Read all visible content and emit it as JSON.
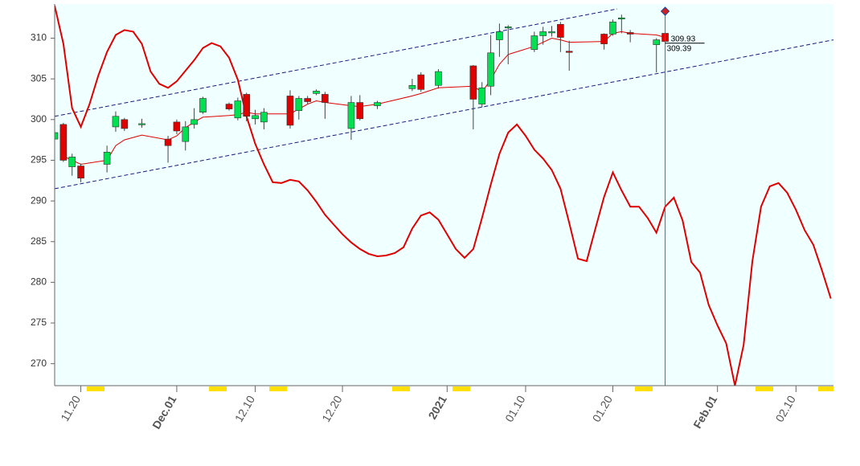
{
  "chart_data": {
    "type": "candlestick",
    "xlim": [
      17,
      106.3
    ],
    "ylim": [
      267.3,
      314.2
    ],
    "yticks": [
      270,
      275,
      280,
      285,
      290,
      295,
      300,
      305,
      310
    ],
    "xticks": [
      {
        "value": 20,
        "label": "11.20"
      },
      {
        "value": 31,
        "label": "Dec.01"
      },
      {
        "value": 40,
        "label": "12.10"
      },
      {
        "value": 50,
        "label": "12.20"
      },
      {
        "value": 62,
        "label": "2021"
      },
      {
        "value": 71,
        "label": "01.10"
      },
      {
        "value": 81,
        "label": "01.20"
      },
      {
        "value": 93,
        "label": "Feb.01"
      },
      {
        "value": 102,
        "label": "02.10"
      }
    ],
    "xtick_colors": [
      "#666666",
      "#800000",
      "#666666",
      "#666666",
      "#800000",
      "#666666",
      "#666666",
      "#800000",
      "#666666"
    ],
    "up_color": "#00e050",
    "down_color": "#e00000",
    "candles": {
      "x": [
        17,
        18,
        19,
        20,
        23,
        24,
        25,
        27,
        30,
        31,
        32,
        33,
        34,
        37,
        38,
        39,
        40,
        41,
        44,
        45,
        46,
        47,
        48,
        51,
        52,
        54,
        58,
        59,
        61,
        65,
        66,
        67,
        68,
        69,
        72,
        73,
        74,
        75,
        76,
        80,
        81,
        82,
        83,
        86,
        87
      ],
      "open": [
        297.6,
        299.4,
        294.2,
        294.3,
        294.5,
        299.1,
        300.0,
        299.4,
        297.6,
        299.7,
        297.3,
        299.4,
        300.9,
        301.9,
        300.2,
        303.1,
        300.1,
        299.7,
        302.9,
        301.1,
        302.6,
        303.2,
        303.1,
        298.9,
        302.1,
        301.7,
        303.8,
        305.5,
        304.2,
        306.6,
        301.9,
        304.1,
        309.8,
        311.3,
        308.6,
        310.3,
        310.7,
        311.7,
        308.4,
        310.5,
        310.5,
        312.4,
        310.7,
        309.2,
        310.6
      ],
      "high": [
        299.3,
        299.6,
        295.8,
        294.6,
        296.8,
        301.0,
        300.2,
        300.1,
        298.0,
        300.0,
        299.8,
        301.4,
        302.8,
        302.1,
        302.7,
        303.3,
        301.2,
        301.4,
        303.6,
        302.9,
        302.9,
        303.7,
        303.4,
        302.9,
        303.0,
        302.3,
        305.0,
        305.8,
        306.2,
        306.7,
        304.6,
        310.4,
        311.8,
        311.6,
        310.8,
        311.4,
        311.5,
        312.0,
        309.7,
        310.6,
        312.3,
        312.9,
        311.0,
        310.0,
        310.7
      ],
      "low": [
        296.5,
        294.8,
        293.1,
        292.3,
        293.5,
        298.5,
        298.6,
        299.0,
        294.7,
        298.2,
        296.2,
        298.9,
        300.7,
        301.1,
        299.9,
        299.8,
        299.4,
        298.8,
        298.9,
        300.0,
        301.9,
        303.0,
        300.1,
        297.5,
        299.9,
        301.3,
        303.5,
        303.4,
        303.8,
        298.8,
        301.5,
        303.0,
        307.7,
        306.8,
        308.3,
        309.2,
        310.2,
        308.3,
        306.0,
        308.6,
        310.3,
        310.6,
        309.5,
        305.8,
        309.4
      ],
      "close": [
        298.4,
        295.0,
        295.4,
        292.8,
        296.0,
        300.4,
        298.9,
        299.5,
        296.8,
        298.6,
        299.1,
        300.0,
        302.6,
        301.3,
        302.3,
        300.4,
        300.5,
        300.9,
        299.3,
        302.6,
        302.2,
        303.5,
        302.1,
        302.1,
        300.1,
        302.1,
        304.2,
        303.7,
        305.9,
        302.5,
        303.9,
        308.2,
        310.8,
        311.4,
        310.3,
        310.8,
        310.8,
        310.1,
        308.3,
        309.3,
        312.0,
        312.5,
        310.5,
        309.8,
        309.6
      ]
    },
    "lines": [
      {
        "color": "#e00000",
        "width": 1,
        "x": [
          18,
          19,
          20,
          23,
          24,
          25,
          27,
          30,
          31,
          32,
          33,
          34,
          37,
          38,
          39,
          40,
          41,
          44,
          45,
          46,
          47,
          48,
          51,
          52,
          54,
          58,
          59,
          61,
          65,
          66,
          67,
          68,
          69,
          72,
          73,
          74,
          75,
          76,
          80,
          81,
          82,
          83,
          86,
          87
        ],
        "values": [
          295.5,
          295.0,
          294.5,
          295.0,
          296.8,
          297.5,
          298.1,
          297.5,
          298.0,
          299.0,
          299.7,
          300.3,
          300.5,
          300.6,
          300.9,
          300.7,
          300.7,
          300.7,
          301.3,
          301.9,
          302.3,
          302.1,
          301.7,
          301.6,
          301.9,
          302.9,
          303.2,
          303.9,
          304.1,
          303.4,
          304.9,
          306.8,
          308.0,
          309.0,
          309.5,
          310.0,
          309.8,
          309.5,
          309.6,
          310.6,
          310.8,
          310.6,
          310.4,
          310.1
        ]
      },
      {
        "color": "#e00000",
        "width": 2,
        "x": [
          17,
          18,
          19,
          20,
          21,
          22,
          23,
          24,
          25,
          26,
          27,
          28,
          29,
          30,
          31,
          32,
          33,
          34,
          35,
          36,
          37,
          38,
          39,
          40,
          41,
          42,
          43,
          44,
          45,
          46,
          47,
          48,
          49,
          50,
          51,
          52,
          53,
          54,
          55,
          56,
          57,
          58,
          59,
          60,
          61,
          62,
          63,
          64,
          65,
          66,
          67,
          68,
          69,
          70,
          71,
          72,
          73,
          74,
          75,
          76,
          77,
          78,
          79,
          80,
          81,
          82,
          83,
          84,
          85,
          86,
          87,
          88,
          89,
          90,
          91,
          92,
          93,
          94,
          95,
          96,
          97,
          98,
          99,
          100,
          101,
          102,
          103,
          104,
          105,
          106
        ],
        "values": [
          314.0,
          309.3,
          301.4,
          299.1,
          301.9,
          305.4,
          308.3,
          310.4,
          311.0,
          310.8,
          309.3,
          305.9,
          304.4,
          303.9,
          304.7,
          306.0,
          307.3,
          308.8,
          309.4,
          309.0,
          307.6,
          304.9,
          300.4,
          297.0,
          294.5,
          292.3,
          292.2,
          292.6,
          292.4,
          291.3,
          289.9,
          288.3,
          287.1,
          285.9,
          284.9,
          284.1,
          283.5,
          283.2,
          283.3,
          283.6,
          284.3,
          286.6,
          288.2,
          288.6,
          287.7,
          285.9,
          284.1,
          283.0,
          284.1,
          287.9,
          292.0,
          295.8,
          298.4,
          299.4,
          298.0,
          296.3,
          295.2,
          293.8,
          291.5,
          287.3,
          282.9,
          282.6,
          286.6,
          290.5,
          293.5,
          291.3,
          289.3,
          289.3,
          287.9,
          286.1,
          289.3,
          290.4,
          287.6,
          282.5,
          281.2,
          277.2,
          274.7,
          272.5,
          267.3,
          272.3,
          282.6,
          289.3,
          291.8,
          292.2,
          291.0,
          288.9,
          286.4,
          284.6,
          281.4,
          278.0
        ]
      }
    ],
    "channel_lines": [
      {
        "color": "#1a1a80",
        "x": [
          17,
          81.5
        ],
        "values": [
          300.4,
          313.6
        ]
      },
      {
        "color": "#1a1a80",
        "x": [
          17,
          106.3
        ],
        "values": [
          291.5,
          309.8
        ]
      }
    ],
    "cursor_x": 87,
    "price_labels": [
      309.93,
      309.39
    ]
  }
}
